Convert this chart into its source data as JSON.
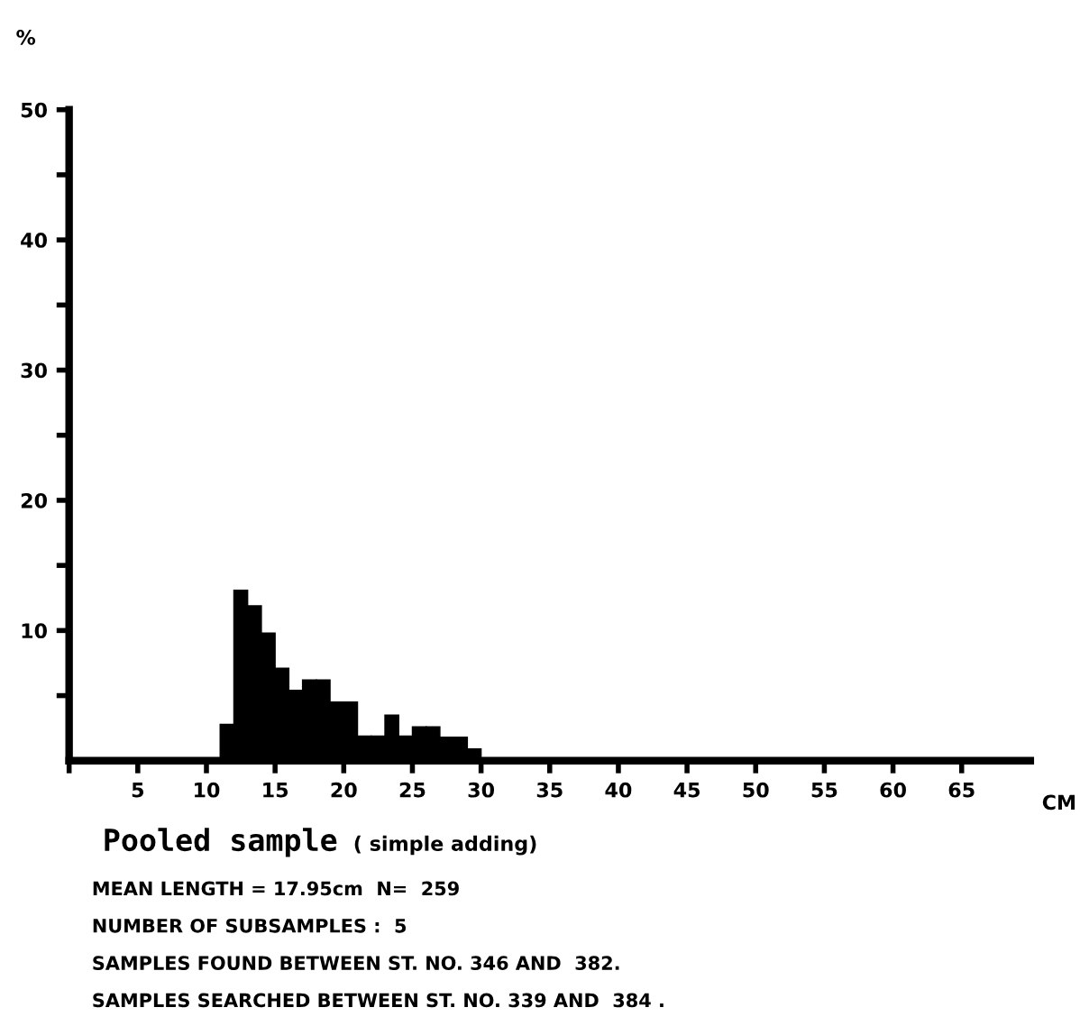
{
  "chart_data": {
    "type": "histogram",
    "title": "Pooled sample",
    "subtitle": "( simple adding)",
    "xlabel": "CM",
    "ylabel": "%",
    "bins": [
      11,
      12,
      13,
      14,
      15,
      16,
      17,
      18,
      19,
      20,
      21,
      22,
      23,
      24,
      25,
      26,
      27,
      28,
      29,
      30
    ],
    "values": [
      2.8,
      13.1,
      11.9,
      9.8,
      7.1,
      5.4,
      6.2,
      6.2,
      4.5,
      4.5,
      1.9,
      1.9,
      3.5,
      1.9,
      2.6,
      2.6,
      1.8,
      1.8,
      0.9
    ],
    "color": "#000000",
    "xlim": [
      0,
      70
    ],
    "xticks": [
      {
        "value": 0,
        "label": null
      },
      5,
      10,
      15,
      20,
      25,
      30,
      35,
      40,
      45,
      50,
      55,
      60,
      65
    ],
    "ylim": [
      0,
      50
    ],
    "yticks": [
      {
        "value": 5,
        "label": null
      },
      10,
      {
        "value": 15,
        "label": null
      },
      20,
      {
        "value": 25,
        "label": null
      },
      30,
      {
        "value": 35,
        "label": null
      },
      40,
      {
        "value": 45,
        "label": null
      },
      50
    ],
    "grid": false,
    "legend": false,
    "annotations": [
      "MEAN LENGTH = 17.95cm  N=  259",
      "NUMBER OF SUBSAMPLES :  5",
      "SAMPLES FOUND BETWEEN ST. NO. 346 AND  382.",
      "SAMPLES SEARCHED BETWEEN ST. NO. 339 AND  384 ."
    ]
  }
}
